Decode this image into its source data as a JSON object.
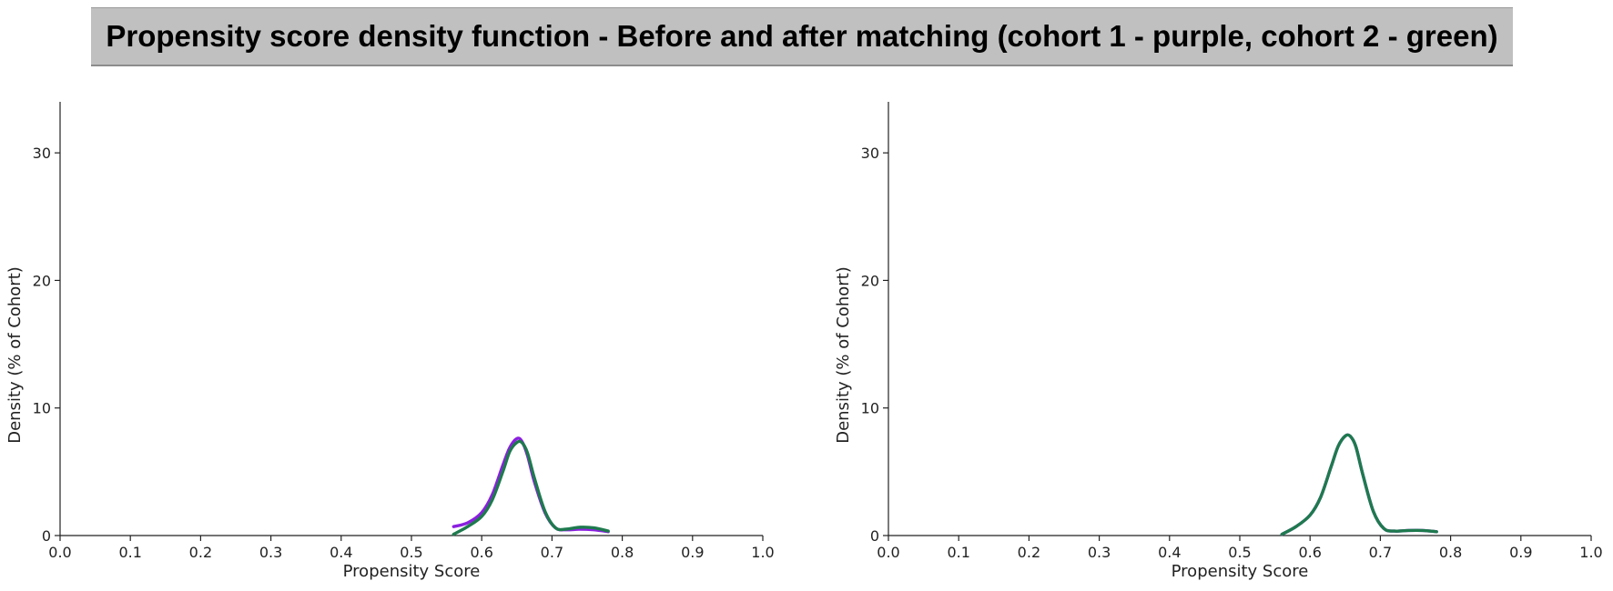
{
  "title": "Propensity score density function - Before and after matching (cohort 1 - purple, cohort 2 - green)",
  "colors": {
    "cohort1": "#8B1FE0",
    "cohort2": "#1E7A4E",
    "title_band": "#c0c0c0"
  },
  "chart_data": [
    {
      "type": "line",
      "xlabel": "Propensity Score",
      "ylabel": "Density (% of Cohort)",
      "xlim": [
        0.0,
        1.0
      ],
      "ylim": [
        0,
        34
      ],
      "xticks": [
        "0.0",
        "0.1",
        "0.2",
        "0.3",
        "0.4",
        "0.5",
        "0.6",
        "0.7",
        "0.8",
        "0.9",
        "1.0"
      ],
      "yticks": [
        "0",
        "10",
        "20",
        "30"
      ],
      "grid": false,
      "series": [
        {
          "color": "#8B1FE0",
          "x": [
            0.56,
            0.58,
            0.6,
            0.615,
            0.63,
            0.64,
            0.65,
            0.657,
            0.665,
            0.675,
            0.69,
            0.705,
            0.72,
            0.74,
            0.76,
            0.78
          ],
          "y": [
            0.7,
            1.0,
            1.8,
            3.2,
            5.5,
            6.9,
            7.6,
            7.4,
            6.3,
            4.2,
            1.8,
            0.6,
            0.45,
            0.5,
            0.45,
            0.3
          ]
        },
        {
          "color": "#1E7A4E",
          "x": [
            0.56,
            0.58,
            0.6,
            0.615,
            0.63,
            0.64,
            0.65,
            0.657,
            0.665,
            0.675,
            0.69,
            0.705,
            0.72,
            0.74,
            0.76,
            0.78
          ],
          "y": [
            0.1,
            0.7,
            1.5,
            2.8,
            5.0,
            6.6,
            7.3,
            7.3,
            6.5,
            4.5,
            1.9,
            0.6,
            0.5,
            0.65,
            0.6,
            0.35
          ]
        }
      ]
    },
    {
      "type": "line",
      "xlabel": "Propensity Score",
      "ylabel": "Density (% of Cohort)",
      "xlim": [
        0.0,
        1.0
      ],
      "ylim": [
        0,
        34
      ],
      "xticks": [
        "0.0",
        "0.1",
        "0.2",
        "0.3",
        "0.4",
        "0.5",
        "0.6",
        "0.7",
        "0.8",
        "0.9",
        "1.0"
      ],
      "yticks": [
        "0",
        "10",
        "20",
        "30"
      ],
      "grid": false,
      "series": [
        {
          "color": "#8B1FE0",
          "x": [
            0.56,
            0.58,
            0.6,
            0.615,
            0.63,
            0.64,
            0.65,
            0.657,
            0.665,
            0.675,
            0.69,
            0.705,
            0.72,
            0.74,
            0.76,
            0.78
          ],
          "y": [
            0.1,
            0.7,
            1.6,
            3.0,
            5.4,
            7.0,
            7.8,
            7.8,
            7.0,
            4.8,
            1.9,
            0.55,
            0.35,
            0.4,
            0.4,
            0.3
          ]
        },
        {
          "color": "#1E7A4E",
          "x": [
            0.56,
            0.58,
            0.6,
            0.615,
            0.63,
            0.64,
            0.65,
            0.657,
            0.665,
            0.675,
            0.69,
            0.705,
            0.72,
            0.74,
            0.76,
            0.78
          ],
          "y": [
            0.1,
            0.7,
            1.6,
            3.0,
            5.4,
            7.0,
            7.8,
            7.8,
            7.0,
            4.8,
            1.9,
            0.55,
            0.35,
            0.4,
            0.4,
            0.3
          ]
        }
      ]
    }
  ]
}
